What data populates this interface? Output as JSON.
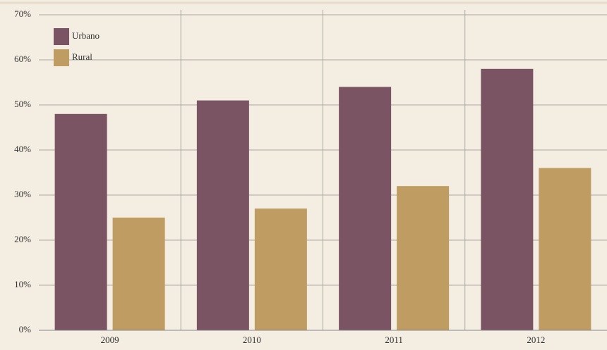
{
  "chart_data": {
    "type": "bar",
    "categories": [
      "2009",
      "2010",
      "2011",
      "2012"
    ],
    "series": [
      {
        "name": "Urbano",
        "color": "#7b5464",
        "values": [
          48,
          51,
          54,
          58
        ]
      },
      {
        "name": "Rural",
        "color": "#bf9c62",
        "values": [
          25,
          27,
          32,
          36
        ]
      }
    ],
    "ylim": [
      0,
      70
    ],
    "yticks": [
      {
        "value": 0,
        "label": "0%"
      },
      {
        "value": 10,
        "label": "10%"
      },
      {
        "value": 20,
        "label": "20%"
      },
      {
        "value": 30,
        "label": "30%"
      },
      {
        "value": 40,
        "label": "40%"
      },
      {
        "value": 50,
        "label": "50%"
      },
      {
        "value": 60,
        "label": "60%"
      },
      {
        "value": 70,
        "label": "70%"
      }
    ],
    "grid": true,
    "legend": "top-left"
  }
}
